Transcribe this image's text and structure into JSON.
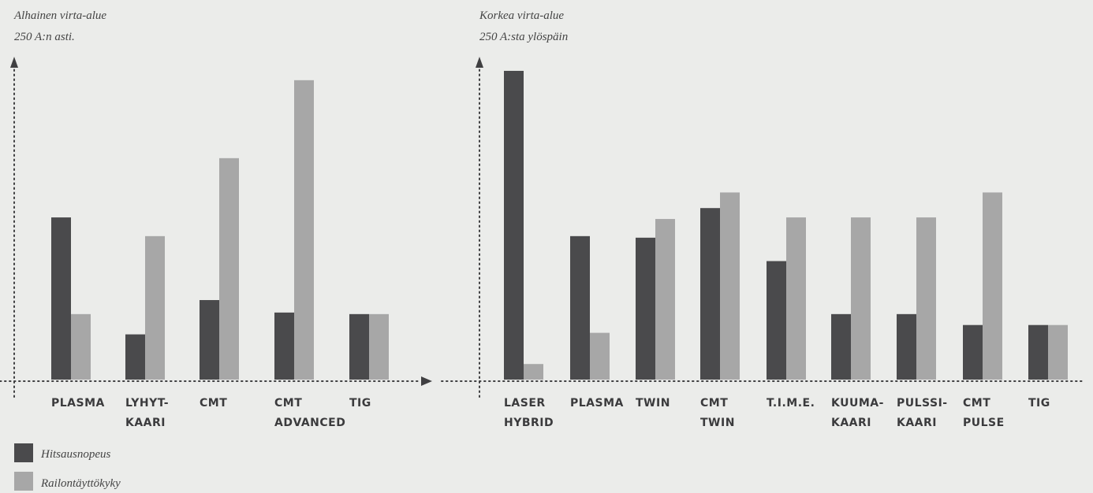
{
  "chart_data": [
    {
      "type": "bar",
      "title": "Alhainen virta-alue",
      "subtitle": "250 A:n asti.",
      "categories": [
        [
          "PLASMA"
        ],
        [
          "LYHYT-",
          "KAARI"
        ],
        [
          "CMT"
        ],
        [
          "CMT",
          "ADVANCED"
        ],
        [
          "TIG"
        ]
      ],
      "series": [
        {
          "name": "Hitsausnopeus",
          "values": [
            52,
            14.5,
            25.5,
            21.5,
            21
          ]
        },
        {
          "name": "Railontäyttökyky",
          "values": [
            21,
            46,
            71,
            96,
            21
          ]
        }
      ],
      "ylim": [
        0,
        100
      ],
      "grid": false,
      "legend_position": "bottom-left"
    },
    {
      "type": "bar",
      "title": "Korkea virta-alue",
      "subtitle": "250 A:sta ylöspäin",
      "categories": [
        [
          "LASER",
          "HYBRID"
        ],
        [
          "PLASMA"
        ],
        [
          "TWIN"
        ],
        [
          "CMT",
          "TWIN"
        ],
        [
          "T.I.M.E."
        ],
        [
          "KUUMA-",
          "KAARI"
        ],
        [
          "PULSSI-",
          "KAARI"
        ],
        [
          "CMT",
          "PULSE"
        ],
        [
          "TIG"
        ]
      ],
      "series": [
        {
          "name": "Hitsausnopeus",
          "values": [
            99,
            46,
            45.5,
            55,
            38,
            21,
            21,
            17.5,
            17.5
          ]
        },
        {
          "name": "Railontäyttökyky",
          "values": [
            5,
            15,
            51.5,
            60,
            52,
            52,
            52,
            60,
            17.5
          ]
        }
      ],
      "ylim": [
        0,
        100
      ],
      "grid": false,
      "legend_position": "bottom-left"
    }
  ],
  "colors": {
    "Hitsausnopeus": "#4a4a4c",
    "Railontäyttökyky": "#a7a7a7",
    "axis": "#3f3f41"
  },
  "legend": [
    {
      "label": "Hitsausnopeus"
    },
    {
      "label": "Railontäyttökyky"
    }
  ]
}
